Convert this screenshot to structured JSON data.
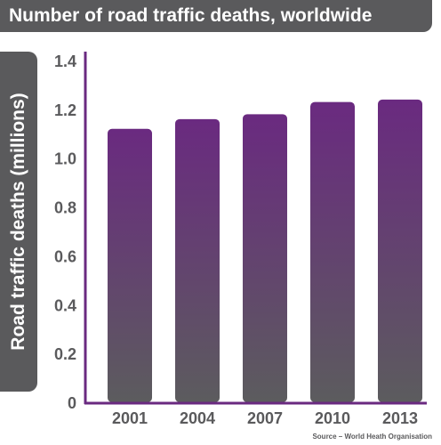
{
  "chart_data": {
    "type": "bar",
    "title": "Number of road traffic deaths, worldwide",
    "ylabel": "Road traffic deaths (millions)",
    "xlabel": "",
    "categories": [
      "2001",
      "2004",
      "2007",
      "2010",
      "2013"
    ],
    "values": [
      1.12,
      1.16,
      1.18,
      1.23,
      1.24
    ],
    "ylim": [
      0,
      1.4
    ],
    "yticks": [
      "0",
      "0.2",
      "0.4",
      "0.6",
      "0.8",
      "1.0",
      "1.2",
      "1.4"
    ],
    "grid": false,
    "legend": "none",
    "source": "Source – World Heath Organisation",
    "colors": {
      "bar_top": "#6a2a80",
      "bar_bottom": "#5c5c5e",
      "axis": "#6a2a80",
      "text": "#5a5a5c",
      "banner": "#5a5a5c"
    }
  }
}
